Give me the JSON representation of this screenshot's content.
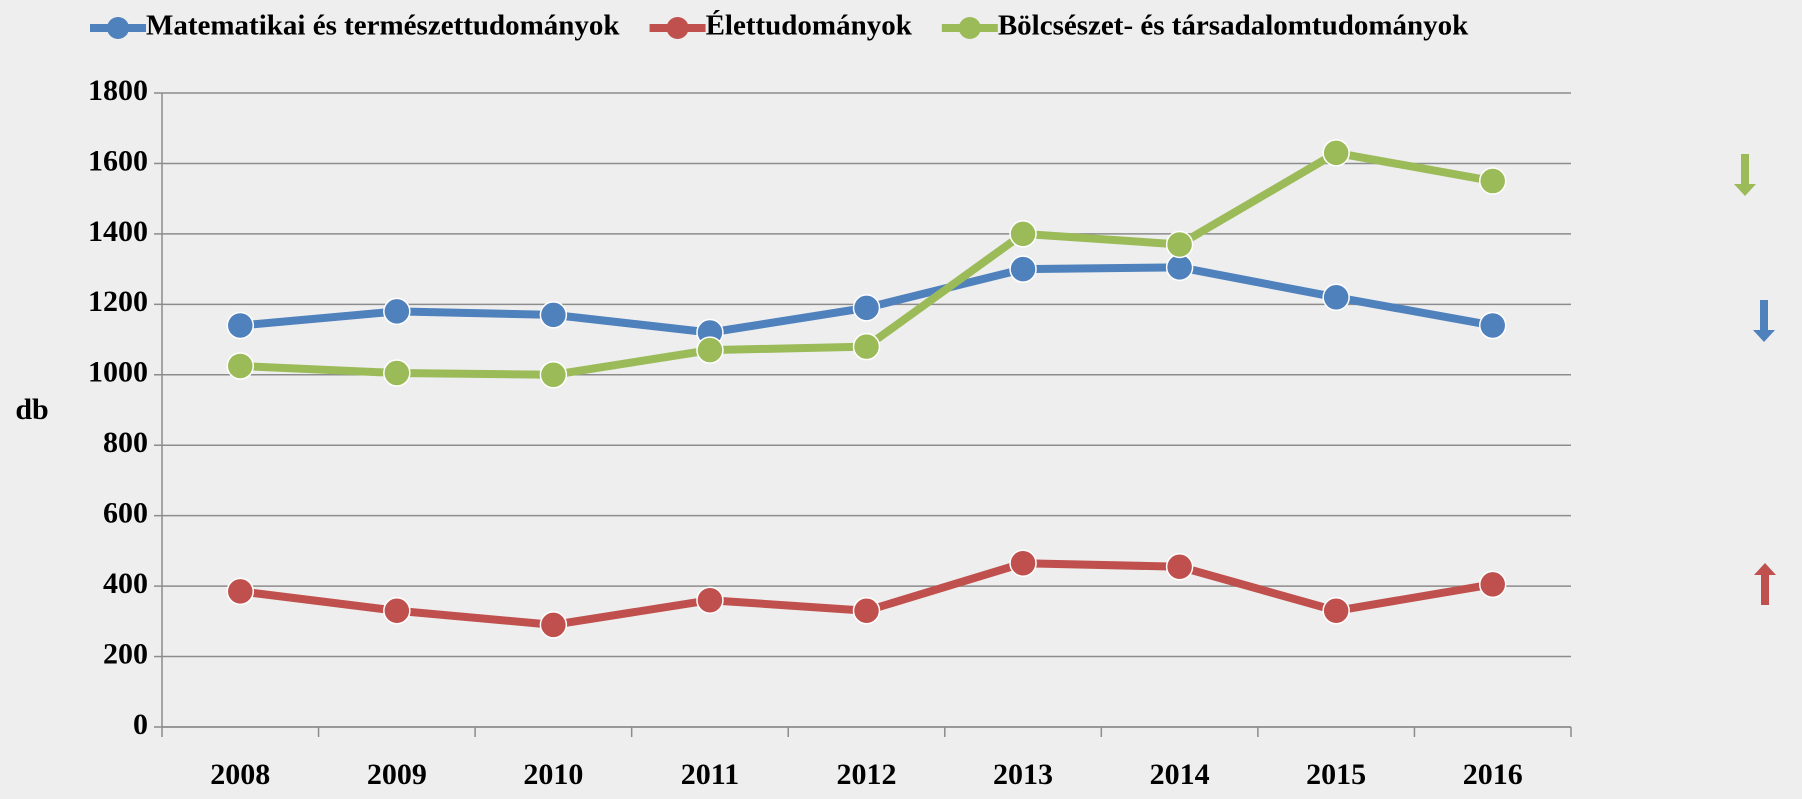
{
  "chart_data": {
    "type": "line",
    "categories": [
      "2008",
      "2009",
      "2010",
      "2011",
      "2012",
      "2013",
      "2014",
      "2015",
      "2016"
    ],
    "series": [
      {
        "name": "Matematikai és természettudományok",
        "color": "#4f81bd",
        "values": [
          1140,
          1180,
          1170,
          1120,
          1190,
          1300,
          1305,
          1220,
          1140
        ]
      },
      {
        "name": "Élettudományok",
        "color": "#c0504d",
        "values": [
          385,
          330,
          290,
          360,
          330,
          465,
          455,
          330,
          405
        ]
      },
      {
        "name": "Bölcsészet- és társadalomtudományok",
        "color": "#9bbb59",
        "values": [
          1025,
          1005,
          1000,
          1070,
          1080,
          1400,
          1370,
          1630,
          1550
        ]
      }
    ],
    "ylabel": "db",
    "ylim": [
      0,
      1800
    ],
    "yticks": [
      0,
      200,
      400,
      600,
      800,
      1000,
      1200,
      1400,
      1600,
      1800
    ],
    "grid": true
  }
}
